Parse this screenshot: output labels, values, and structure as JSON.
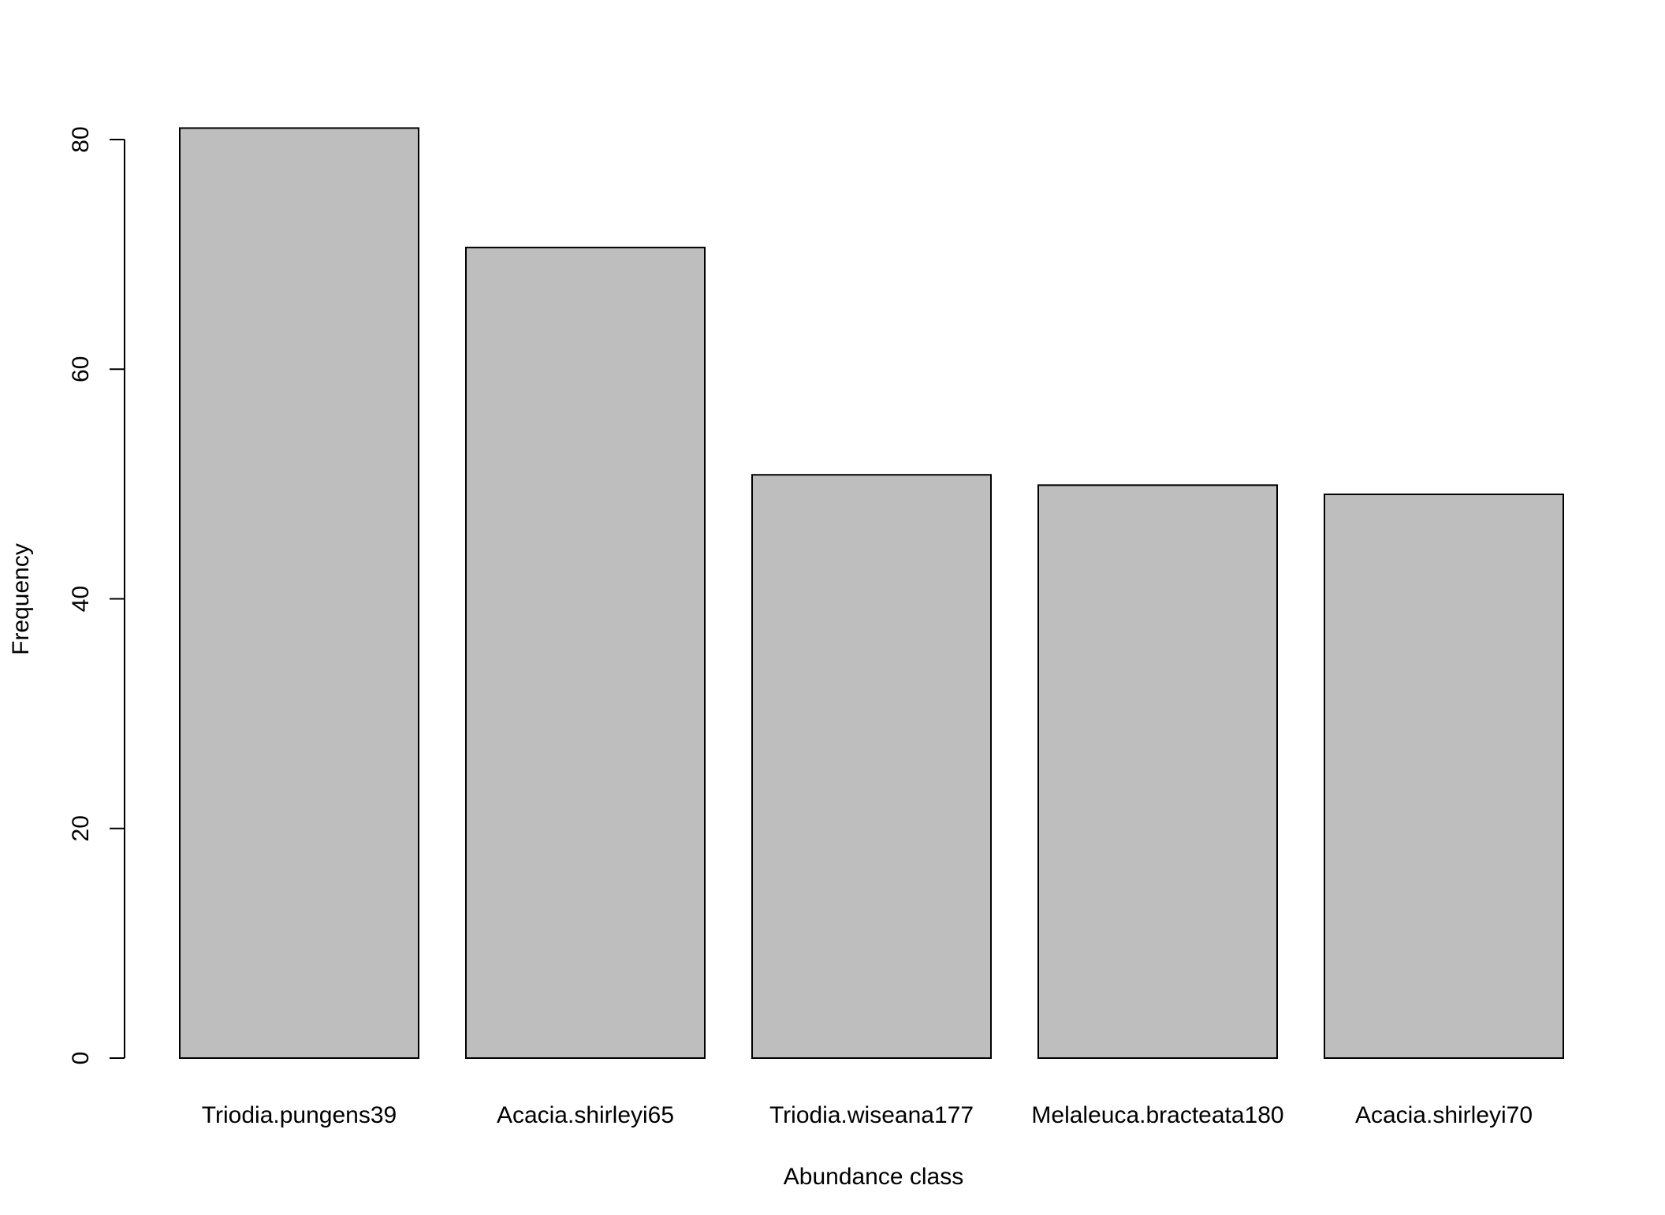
{
  "chart_data": {
    "type": "bar",
    "title": "",
    "xlabel": "Abundance class",
    "ylabel": "Frequency",
    "categories": [
      "Triodia.pungens39",
      "Acacia.shirleyi65",
      "Triodia.wiseana177",
      "Melaleuca.bracteata180",
      "Acacia.shirleyi70"
    ],
    "values": [
      81,
      70.6,
      50.8,
      49.9,
      49.1
    ],
    "ylim": [
      0,
      80
    ],
    "yticks": [
      0,
      20,
      40,
      60,
      80
    ],
    "bar_fill": "#bebebe",
    "bar_stroke": "#000000",
    "grid": false,
    "legend": "none"
  }
}
